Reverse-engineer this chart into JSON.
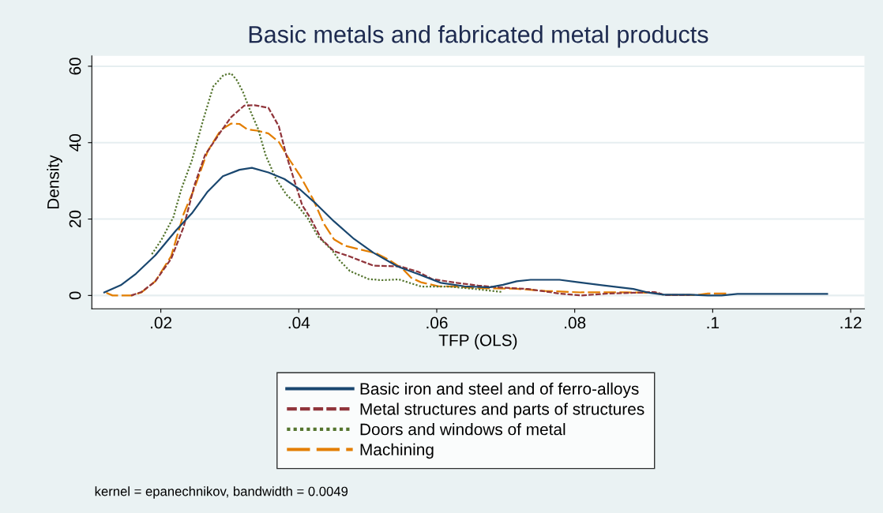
{
  "chart_data": {
    "type": "line",
    "title": "Basic metals and fabricated metal products",
    "xlabel": "TFP (OLS)",
    "ylabel": "Density",
    "annotations": [
      "kernel = epanechnikov, bandwidth = 0.0049"
    ],
    "xlim": [
      0.01,
      0.122
    ],
    "ylim": [
      -3.5,
      62.7
    ],
    "xticks": [
      {
        "value": 0.02,
        "label": ".02"
      },
      {
        "value": 0.04,
        "label": ".04"
      },
      {
        "value": 0.06,
        "label": ".06"
      },
      {
        "value": 0.08,
        "label": ".08"
      },
      {
        "value": 0.1,
        "label": ".1"
      },
      {
        "value": 0.12,
        "label": ".12"
      }
    ],
    "yticks": [
      0,
      20,
      40,
      60
    ],
    "grid": "y",
    "legend": "bottom",
    "marker": "none",
    "series": [
      {
        "name": "Basic iron and steel and of ferro-alloys",
        "color": "#1a476f",
        "line_style": "solid",
        "x": [
          0.0118,
          0.0142,
          0.0164,
          0.0192,
          0.0222,
          0.0245,
          0.0268,
          0.029,
          0.0314,
          0.0332,
          0.0356,
          0.0379,
          0.0402,
          0.0425,
          0.0451,
          0.048,
          0.0508,
          0.0543,
          0.0573,
          0.0606,
          0.064,
          0.0676,
          0.0696,
          0.0716,
          0.0736,
          0.0778,
          0.0803,
          0.0844,
          0.0885,
          0.0908,
          0.0929,
          0.0967,
          0.0993,
          0.1013,
          0.1036,
          0.1166
        ],
        "values": [
          0.8,
          2.7,
          5.7,
          10.5,
          17,
          21.5,
          27.2,
          31.2,
          32.9,
          33.4,
          32.2,
          30.5,
          27.7,
          24,
          19.4,
          14.8,
          11.2,
          7.6,
          5.6,
          3.3,
          2.4,
          2.1,
          2.8,
          3.7,
          4.1,
          4.1,
          3.5,
          2.6,
          1.7,
          0.7,
          0.2,
          0.2,
          0,
          0,
          0.4,
          0.4
        ]
      },
      {
        "name": "Metal structures and parts of structures",
        "color": "#90353b",
        "line_style": "dashed",
        "x": [
          0.0157,
          0.0172,
          0.0192,
          0.0215,
          0.0233,
          0.0249,
          0.0264,
          0.0287,
          0.0302,
          0.0321,
          0.0336,
          0.0356,
          0.0371,
          0.0382,
          0.0394,
          0.0405,
          0.0417,
          0.0433,
          0.0451,
          0.0474,
          0.0508,
          0.0547,
          0.0573,
          0.0593,
          0.0629,
          0.066,
          0.069,
          0.0732,
          0.0778,
          0.0809,
          0.0849,
          0.0885,
          0.0916,
          0.0931,
          0.0967
        ],
        "values": [
          0,
          0.9,
          3.7,
          9.6,
          17.9,
          29,
          36.7,
          42.9,
          46.7,
          49.7,
          49.8,
          49.1,
          44.3,
          36.7,
          29.8,
          23.6,
          20.2,
          14.7,
          11.6,
          10.2,
          7.8,
          7.6,
          6.2,
          4.3,
          3.3,
          2.6,
          2.1,
          1.7,
          0.5,
          0,
          0.5,
          0.7,
          0.9,
          0.1,
          0.1
        ]
      },
      {
        "name": "Doors and windows of metal",
        "color": "#55752f",
        "line_style": "dotted",
        "x": [
          0.0187,
          0.0201,
          0.0218,
          0.023,
          0.0245,
          0.0261,
          0.0276,
          0.0291,
          0.0302,
          0.031,
          0.0319,
          0.033,
          0.0341,
          0.0352,
          0.0367,
          0.0382,
          0.0398,
          0.0413,
          0.0428,
          0.0448,
          0.0459,
          0.0474,
          0.0501,
          0.052,
          0.0545,
          0.0578,
          0.0619,
          0.0655,
          0.0696
        ],
        "values": [
          10.8,
          14.6,
          20.4,
          28,
          35.3,
          45.7,
          54.7,
          57.7,
          58.1,
          56.4,
          53.3,
          48.2,
          43.6,
          36.7,
          30.5,
          26.4,
          23.6,
          20.2,
          15.4,
          11.9,
          9.2,
          6.4,
          4.3,
          4,
          4.2,
          2.3,
          2.3,
          1.7,
          0.9
        ]
      },
      {
        "name": "Machining",
        "color": "#e37e00",
        "line_style": "longdash",
        "x": [
          0.0121,
          0.013,
          0.0158,
          0.0172,
          0.0192,
          0.0215,
          0.0233,
          0.0249,
          0.0268,
          0.0287,
          0.0302,
          0.0314,
          0.0325,
          0.0341,
          0.0356,
          0.0371,
          0.0387,
          0.0402,
          0.0421,
          0.0436,
          0.0451,
          0.0467,
          0.049,
          0.0513,
          0.0531,
          0.0551,
          0.0563,
          0.0578,
          0.0603,
          0.0629,
          0.0665,
          0.0711,
          0.0757,
          0.0809,
          0.0875,
          0.0916,
          0.0931,
          0.0977,
          0.0993,
          0.1023
        ],
        "values": [
          0.7,
          0,
          0,
          0.8,
          3.7,
          10.3,
          21.3,
          28.2,
          37.8,
          43.3,
          45,
          44.9,
          43.5,
          43.1,
          42.4,
          40.2,
          35.4,
          31.3,
          25.1,
          18.9,
          14.7,
          13,
          12,
          11,
          9.3,
          6.9,
          4.6,
          3.4,
          2.4,
          2.3,
          1.9,
          1.8,
          1.2,
          0.8,
          0.8,
          0.7,
          0.1,
          0.1,
          0.5,
          0.5
        ]
      }
    ]
  }
}
